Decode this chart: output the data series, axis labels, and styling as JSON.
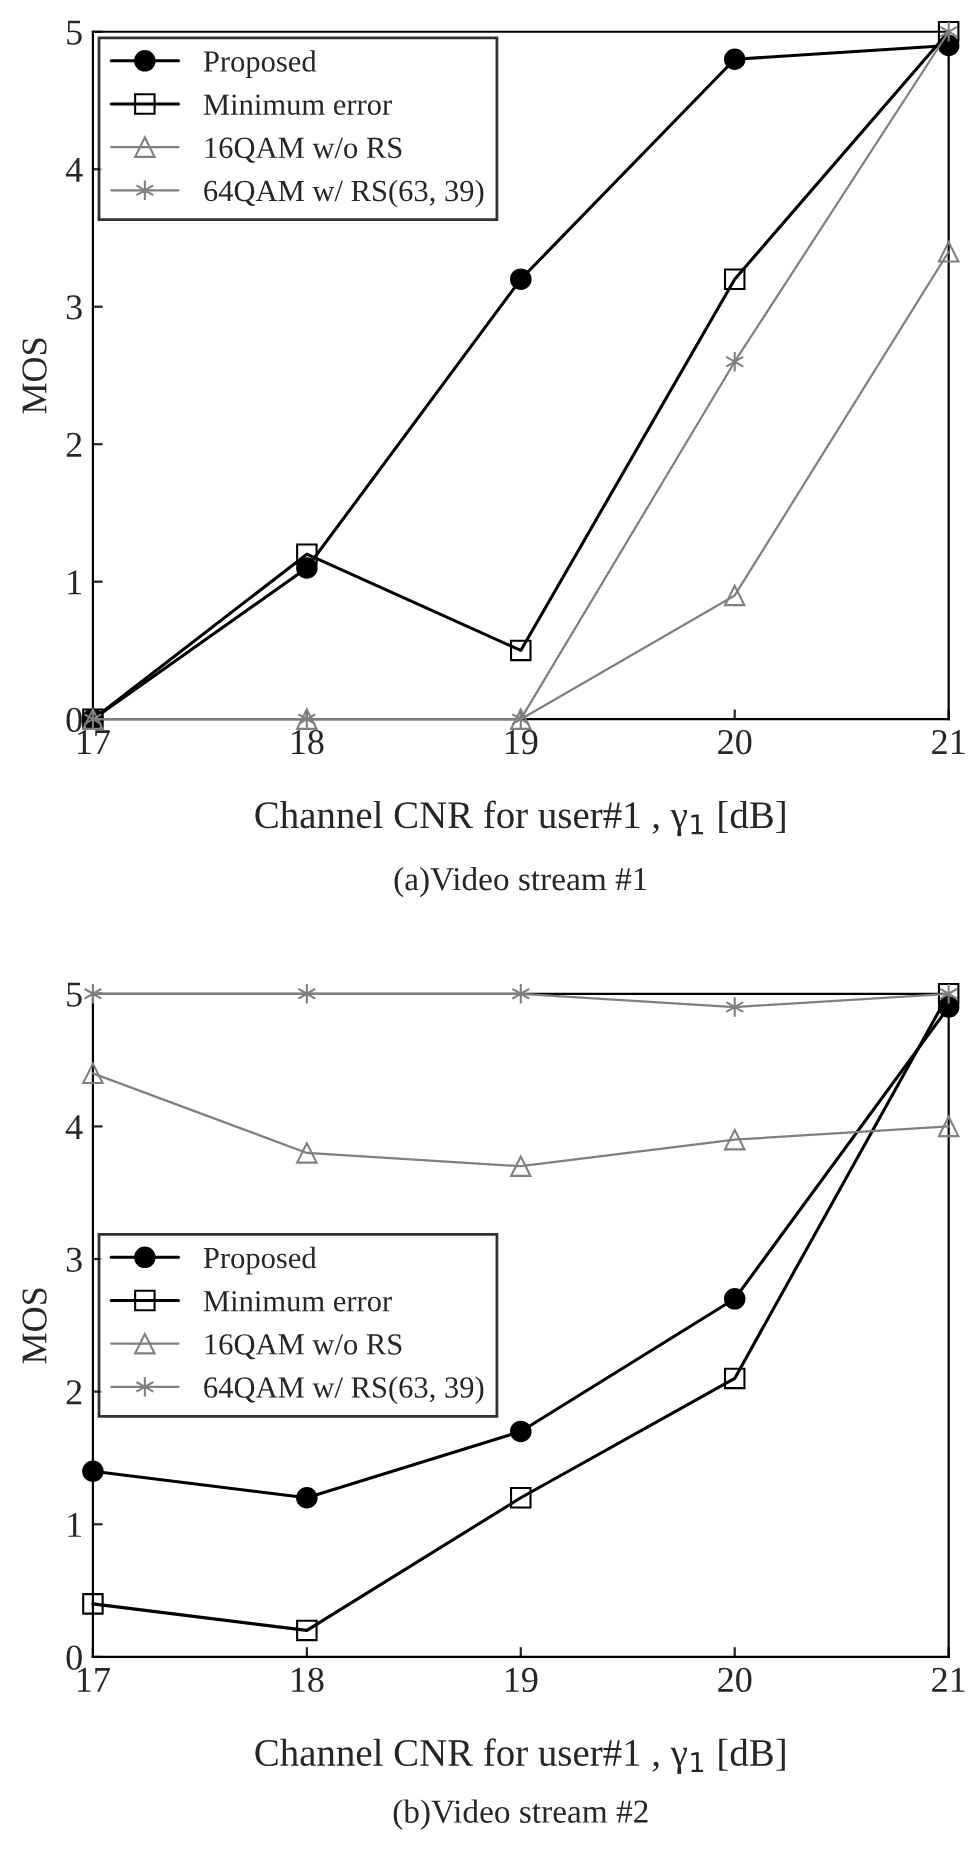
{
  "chart_data": [
    {
      "type": "line",
      "xlabel": "Channel CNR for user#1 , γ$_{1}$ [dB]",
      "ylabel": "MOS",
      "x": [
        17,
        18,
        19,
        20,
        21
      ],
      "xlim": [
        17,
        21
      ],
      "xticks": [
        17,
        18,
        19,
        20,
        21
      ],
      "ylim": [
        0,
        5
      ],
      "yticks": [
        0,
        1,
        2,
        3,
        4,
        5
      ],
      "grid": false,
      "legend": "top left",
      "line_style": "solid",
      "series": [
        {
          "name": "Proposed",
          "color": "#000000",
          "marker": "circle",
          "values": [
            0,
            1.1,
            3.2,
            4.8,
            4.9
          ]
        },
        {
          "name": "Minimum error",
          "color": "#000000",
          "marker": "square",
          "values": [
            0,
            1.2,
            0.5,
            3.2,
            5.0
          ]
        },
        {
          "name": "16QAM w/o RS",
          "color": "#808080",
          "marker": "triangle",
          "values": [
            0,
            0,
            0,
            0.9,
            3.4
          ]
        },
        {
          "name": "64QAM w/ RS(63, 39)",
          "color": "#808080",
          "marker": "cross",
          "values": [
            0,
            0,
            0,
            2.6,
            5.0
          ]
        }
      ],
      "annotations": [
        "(a)Video stream #1"
      ]
    },
    {
      "type": "line",
      "xlabel": "Channel CNR for user#1 , γ$_{1}$ [dB]",
      "ylabel": "MOS",
      "x": [
        17,
        18,
        19,
        20,
        21
      ],
      "xlim": [
        17,
        21
      ],
      "xticks": [
        17,
        18,
        19,
        20,
        21
      ],
      "ylim": [
        0,
        5
      ],
      "yticks": [
        0,
        1,
        2,
        3,
        4,
        5
      ],
      "grid": false,
      "legend": "left",
      "line_style": "solid",
      "series": [
        {
          "name": "Proposed",
          "color": "#000000",
          "marker": "circle",
          "values": [
            1.4,
            1.2,
            1.7,
            2.7,
            4.9
          ]
        },
        {
          "name": "Minimum error",
          "color": "#000000",
          "marker": "square",
          "values": [
            0.4,
            0.2,
            1.2,
            2.1,
            5.0
          ]
        },
        {
          "name": "16QAM w/o RS",
          "color": "#808080",
          "marker": "triangle",
          "values": [
            4.4,
            3.8,
            3.7,
            3.9,
            4.0
          ]
        },
        {
          "name": "64QAM w/ RS(63, 39)",
          "color": "#808080",
          "marker": "cross",
          "values": [
            5.0,
            5.0,
            5.0,
            4.9,
            5.0
          ]
        }
      ],
      "annotations": [
        "(b)Video stream #2"
      ]
    }
  ]
}
